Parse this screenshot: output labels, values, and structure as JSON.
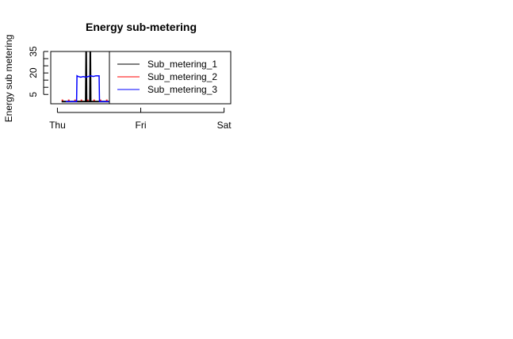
{
  "chart_data": {
    "type": "line",
    "title": "Energy sub-metering",
    "xlabel": "",
    "ylabel": "Energy sub metering",
    "x_ticks": [
      "Thu",
      "Fri",
      "Sat"
    ],
    "x_tick_values": [
      0,
      1,
      2
    ],
    "xlim": [
      -0.08,
      2.08
    ],
    "y_ticks": [
      5,
      20,
      35
    ],
    "y_ticks_minor": [
      10,
      15,
      25,
      30
    ],
    "ylim": [
      -1.5,
      35
    ],
    "legend_position": "top-right",
    "series": [
      {
        "name": "Sub_metering_1",
        "color": "#000000",
        "x": [
          0.05,
          0.15,
          0.25,
          0.33,
          0.34,
          0.345,
          0.35,
          0.37,
          0.39,
          0.395,
          0.4,
          0.42,
          0.5,
          0.6,
          0.7,
          0.8,
          0.9,
          1.0,
          1.1,
          1.2,
          1.3,
          1.4,
          1.5,
          1.6,
          1.7,
          1.8,
          1.9,
          2.0
        ],
        "y": [
          0,
          0,
          0,
          0,
          0,
          38,
          0,
          0,
          0,
          38,
          0,
          0,
          0,
          0,
          0,
          0,
          0,
          0,
          0,
          0,
          0,
          0,
          0,
          0,
          0,
          0,
          0,
          0
        ]
      },
      {
        "name": "Sub_metering_2",
        "color": "#ff0000",
        "x": [
          0.05,
          0.15,
          0.25,
          0.35,
          0.45,
          0.55,
          0.65,
          0.75,
          0.85,
          0.95,
          1.05,
          1.15,
          1.25,
          1.35,
          1.45,
          1.55,
          1.65,
          1.75,
          1.85,
          1.95,
          2.0
        ],
        "y": [
          1,
          1,
          1,
          1,
          1,
          1,
          1,
          1,
          1,
          1,
          1,
          1,
          1,
          1,
          1,
          1,
          1,
          1,
          1,
          1,
          1
        ]
      },
      {
        "name": "Sub_metering_3",
        "color": "#0000ff",
        "x": [
          0.1,
          0.2,
          0.23,
          0.235,
          0.25,
          0.28,
          0.31,
          0.34,
          0.37,
          0.4,
          0.43,
          0.46,
          0.5,
          0.505,
          0.6,
          0.8,
          1.0,
          1.2,
          1.4,
          1.5,
          1.6,
          1.8,
          2.0
        ],
        "y": [
          0,
          0,
          0,
          18,
          17.5,
          17,
          17.5,
          17,
          17.5,
          18,
          17.5,
          18,
          18,
          0,
          0,
          0,
          1,
          0,
          0,
          1,
          0,
          0,
          1
        ]
      }
    ]
  }
}
